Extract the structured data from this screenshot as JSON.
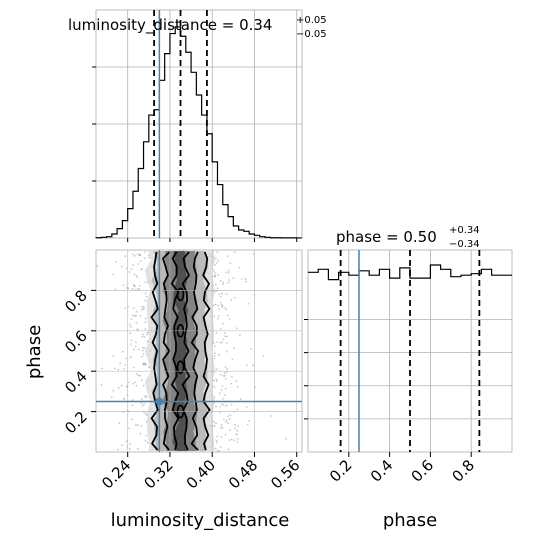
{
  "chart_data": [
    {
      "type": "histogram",
      "panel": "luminosity_distance marginal",
      "title": {
        "param": "luminosity_distance",
        "value": "0.34",
        "plus": "+0.05",
        "minus": "−0.05"
      },
      "bin_edges": [
        0.18,
        0.19,
        0.2,
        0.21,
        0.22,
        0.23,
        0.24,
        0.25,
        0.26,
        0.27,
        0.28,
        0.29,
        0.3,
        0.31,
        0.32,
        0.33,
        0.34,
        0.35,
        0.36,
        0.37,
        0.38,
        0.39,
        0.4,
        0.41,
        0.42,
        0.43,
        0.44,
        0.45,
        0.46,
        0.47,
        0.48,
        0.49,
        0.5,
        0.51,
        0.52,
        0.53,
        0.54,
        0.55,
        0.56,
        0.57
      ],
      "counts": [
        0.2,
        0.5,
        1,
        3,
        7,
        13,
        22,
        35,
        52,
        72,
        92,
        96,
        118,
        138,
        153,
        158,
        151,
        139,
        124,
        107,
        92,
        78,
        57,
        40,
        25,
        16,
        9,
        6,
        5,
        3,
        2,
        1,
        0.5,
        0.2,
        0.2,
        0.1,
        0.1,
        0.1,
        0.05
      ],
      "quantiles": [
        0.29,
        0.34,
        0.39
      ],
      "truth": 0.3,
      "xlim": [
        0.18,
        0.57
      ],
      "grid": true
    },
    {
      "type": "histogram",
      "panel": "phase marginal",
      "title": {
        "param": "phase",
        "value": "0.50",
        "plus": "+0.34",
        "minus": "−0.34"
      },
      "bin_edges": [
        0.0,
        0.05,
        0.1,
        0.15,
        0.2,
        0.25,
        0.3,
        0.35,
        0.4,
        0.45,
        0.5,
        0.55,
        0.6,
        0.65,
        0.7,
        0.75,
        0.8,
        0.85,
        0.9,
        0.95,
        1.0
      ],
      "counts": [
        123,
        125,
        118,
        123,
        121,
        124,
        121,
        125,
        119,
        126,
        119,
        119,
        128,
        125,
        120,
        121,
        122,
        125,
        121,
        121
      ],
      "quantiles": [
        0.16,
        0.5,
        0.84
      ],
      "truth": 0.25,
      "xlim": [
        0.0,
        1.0
      ],
      "xticks": [
        "0.2",
        "0.4",
        "0.6",
        "0.8"
      ],
      "xlabel": "phase",
      "grid": true
    },
    {
      "type": "scatter-density",
      "panel": "2D joint posterior",
      "x_param": "luminosity_distance",
      "y_param": "phase",
      "xlim": [
        0.18,
        0.57
      ],
      "ylim": [
        0.0,
        1.0
      ],
      "xticks": [
        "0.24",
        "0.32",
        "0.40",
        "0.48",
        "0.56"
      ],
      "yticks": [
        "0.2",
        "0.4",
        "0.6",
        "0.8"
      ],
      "xlabel": "luminosity_distance",
      "ylabel": "phase",
      "truth": [
        0.3,
        0.25
      ],
      "center_x": 0.34,
      "sigma_x": 0.05,
      "contour_half_widths_x": [
        0.01,
        0.028,
        0.048
      ],
      "grid": true
    }
  ]
}
